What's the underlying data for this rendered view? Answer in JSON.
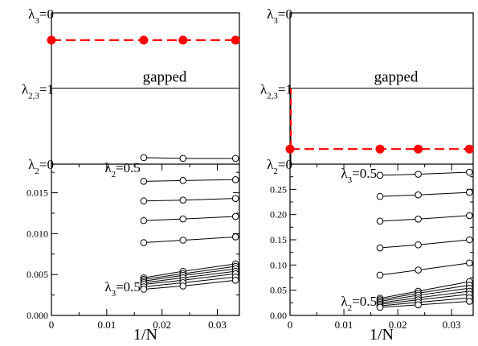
{
  "chart_data": [
    {
      "type": "line",
      "panel": "left",
      "top_section": {
        "top_label": {
          "sym": "λ",
          "sub": "3",
          "rest": "=0"
        },
        "mid_label": {
          "sym": "λ",
          "sub": "2,3",
          "rest": "=1"
        },
        "bottom_label": {
          "sym": "λ",
          "sub": "2",
          "rest": "=0"
        },
        "region_text": "gapped",
        "boundary_points": {
          "x": [
            0,
            0.0167,
            0.0238,
            0.0333
          ],
          "y_fraction": 0.82,
          "color": "#ff0000"
        }
      },
      "xlabel": "1/N",
      "xlim": [
        0,
        0.034
      ],
      "xticks": [
        "0",
        "0.01",
        "0.02",
        "0.03"
      ],
      "ylim": [
        0,
        0.0185
      ],
      "yticks": [
        "0.000",
        "0.005",
        "0.010",
        "0.015"
      ],
      "annotations": [
        {
          "sym": "λ",
          "sub": "2",
          "rest": "=0.5"
        },
        {
          "sym": "λ",
          "sub": "3",
          "rest": "=0.5"
        }
      ],
      "x": [
        0.0167,
        0.0238,
        0.0333
      ],
      "series": [
        {
          "values": [
            0.0193,
            0.0192,
            0.0192
          ]
        },
        {
          "values": [
            0.0164,
            0.0165,
            0.0166
          ]
        },
        {
          "values": [
            0.014,
            0.0141,
            0.0143
          ]
        },
        {
          "values": [
            0.0116,
            0.0118,
            0.0121
          ]
        },
        {
          "values": [
            0.0089,
            0.0092,
            0.0096
          ]
        },
        {
          "values": [
            0.0046,
            0.0054,
            0.0063
          ]
        },
        {
          "values": [
            0.0044,
            0.0051,
            0.006
          ]
        },
        {
          "values": [
            0.0042,
            0.0049,
            0.0057
          ]
        },
        {
          "values": [
            0.004,
            0.0046,
            0.0054
          ]
        },
        {
          "values": [
            0.0038,
            0.0043,
            0.0051
          ]
        },
        {
          "values": [
            0.0035,
            0.004,
            0.0047
          ]
        },
        {
          "values": [
            0.0032,
            0.0036,
            0.0043
          ]
        }
      ]
    },
    {
      "type": "line",
      "panel": "right",
      "top_section": {
        "top_label": {
          "sym": "λ",
          "sub": "3",
          "rest": "=0"
        },
        "mid_label": {
          "sym": "λ",
          "sub": "2,3",
          "rest": "=1"
        },
        "bottom_label": {
          "sym": "λ",
          "sub": "2",
          "rest": "=0"
        },
        "region_text": "gapped",
        "boundary_points": {
          "x": [
            0,
            0.0167,
            0.0238,
            0.0333
          ],
          "y_fraction": 0.1,
          "color": "#ff0000"
        }
      },
      "xlabel": "1/N",
      "xlim": [
        0,
        0.034
      ],
      "xticks": [
        "0",
        "0.01",
        "0.02",
        "0.03"
      ],
      "ylim": [
        0,
        0.3
      ],
      "yticks": [
        "0.00",
        "0.05",
        "0.10",
        "0.15",
        "0.20",
        "0.25"
      ],
      "annotations": [
        {
          "sym": "λ",
          "sub": "3",
          "rest": "=0.5"
        },
        {
          "sym": "λ",
          "sub": "2",
          "rest": "=0.5"
        }
      ],
      "x": [
        0.0167,
        0.0238,
        0.0333
      ],
      "series": [
        {
          "values": [
            0.278,
            0.28,
            0.284
          ]
        },
        {
          "values": [
            0.236,
            0.239,
            0.244
          ]
        },
        {
          "values": [
            0.187,
            0.191,
            0.198
          ]
        },
        {
          "values": [
            0.134,
            0.14,
            0.15
          ]
        },
        {
          "values": [
            0.08,
            0.09,
            0.104
          ]
        },
        {
          "values": [
            0.034,
            0.048,
            0.067
          ]
        },
        {
          "values": [
            0.031,
            0.044,
            0.06
          ]
        },
        {
          "values": [
            0.028,
            0.04,
            0.054
          ]
        },
        {
          "values": [
            0.025,
            0.035,
            0.048
          ]
        },
        {
          "values": [
            0.022,
            0.031,
            0.042
          ]
        },
        {
          "values": [
            0.019,
            0.026,
            0.035
          ]
        },
        {
          "values": [
            0.016,
            0.021,
            0.028
          ]
        }
      ]
    }
  ]
}
